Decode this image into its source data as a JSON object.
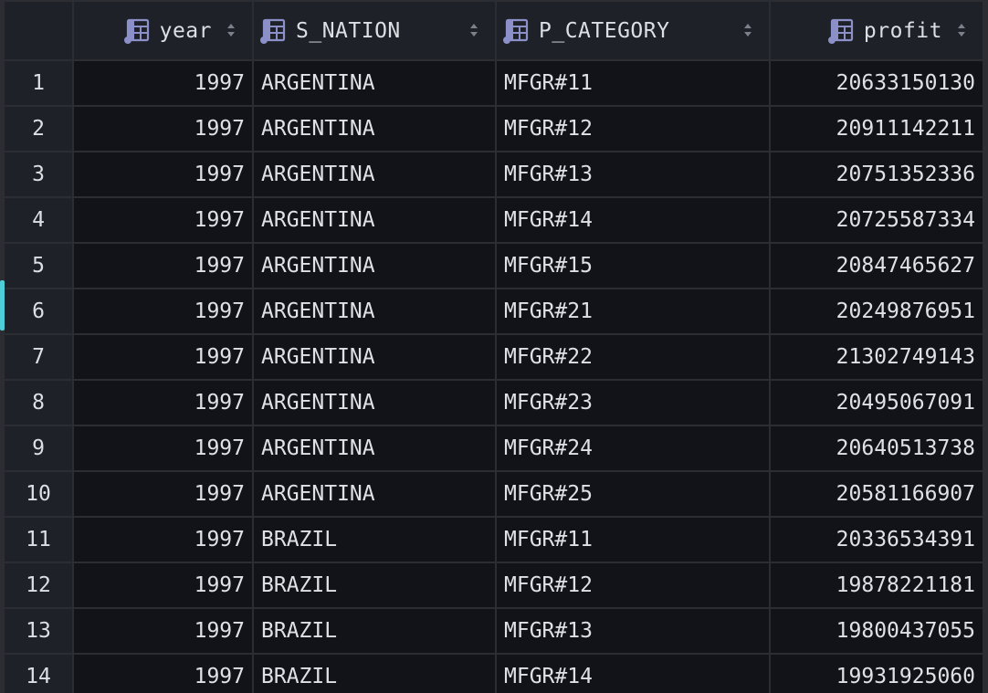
{
  "columns": [
    {
      "label": "year",
      "align": "right"
    },
    {
      "label": "S_NATION",
      "align": "left"
    },
    {
      "label": "P_CATEGORY",
      "align": "left"
    },
    {
      "label": "profit",
      "align": "right"
    }
  ],
  "rows": [
    {
      "n": "1",
      "year": "1997",
      "nation": "ARGENTINA",
      "category": "MFGR#11",
      "profit": "20633150130"
    },
    {
      "n": "2",
      "year": "1997",
      "nation": "ARGENTINA",
      "category": "MFGR#12",
      "profit": "20911142211"
    },
    {
      "n": "3",
      "year": "1997",
      "nation": "ARGENTINA",
      "category": "MFGR#13",
      "profit": "20751352336"
    },
    {
      "n": "4",
      "year": "1997",
      "nation": "ARGENTINA",
      "category": "MFGR#14",
      "profit": "20725587334"
    },
    {
      "n": "5",
      "year": "1997",
      "nation": "ARGENTINA",
      "category": "MFGR#15",
      "profit": "20847465627"
    },
    {
      "n": "6",
      "year": "1997",
      "nation": "ARGENTINA",
      "category": "MFGR#21",
      "profit": "20249876951"
    },
    {
      "n": "7",
      "year": "1997",
      "nation": "ARGENTINA",
      "category": "MFGR#22",
      "profit": "21302749143"
    },
    {
      "n": "8",
      "year": "1997",
      "nation": "ARGENTINA",
      "category": "MFGR#23",
      "profit": "20495067091"
    },
    {
      "n": "9",
      "year": "1997",
      "nation": "ARGENTINA",
      "category": "MFGR#24",
      "profit": "20640513738"
    },
    {
      "n": "10",
      "year": "1997",
      "nation": "ARGENTINA",
      "category": "MFGR#25",
      "profit": "20581166907"
    },
    {
      "n": "11",
      "year": "1997",
      "nation": "BRAZIL",
      "category": "MFGR#11",
      "profit": "20336534391"
    },
    {
      "n": "12",
      "year": "1997",
      "nation": "BRAZIL",
      "category": "MFGR#12",
      "profit": "19878221181"
    },
    {
      "n": "13",
      "year": "1997",
      "nation": "BRAZIL",
      "category": "MFGR#13",
      "profit": "19800437055"
    },
    {
      "n": "14",
      "year": "1997",
      "nation": "BRAZIL",
      "category": "MFGR#14",
      "profit": "19931925060"
    }
  ],
  "icons": {
    "column": "column-table-icon",
    "sort": "sort-arrows-icon"
  },
  "colors": {
    "selection_marker": "#4ecfd8",
    "header_bg": "#1f2128",
    "cell_bg": "#111318",
    "grid_line": "#2b2d33"
  }
}
